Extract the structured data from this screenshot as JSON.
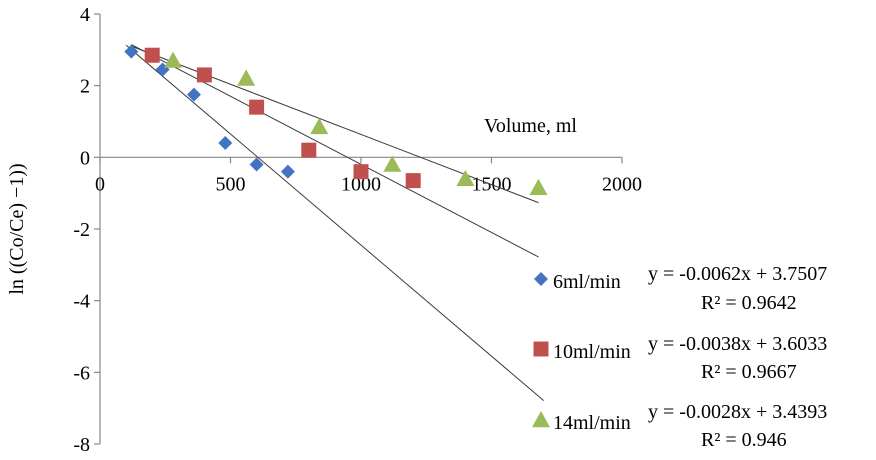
{
  "chart_data": {
    "type": "scatter",
    "title": "",
    "xlabel": "Volume, ml",
    "ylabel": "ln ((Co/Ce)  −1))",
    "xlim": [
      0,
      2000
    ],
    "ylim": [
      -8,
      4
    ],
    "xticks": [
      0,
      500,
      1000,
      1500,
      2000
    ],
    "yticks": [
      4,
      2,
      0,
      -2,
      -4,
      -6,
      -8
    ],
    "grid": false,
    "legend_position": "right",
    "series": [
      {
        "name": "6ml/min",
        "marker": "diamond",
        "color": "#4472C4",
        "x": [
          120,
          240,
          360,
          480,
          600,
          720
        ],
        "y": [
          2.95,
          2.45,
          1.75,
          0.4,
          -0.2,
          -0.4
        ],
        "trend": {
          "slope": -0.0062,
          "intercept": 3.7507,
          "x_range": [
            100,
            1700
          ]
        },
        "equation": "y = -0.0062x  + 3.7507",
        "r2": "R² = 0.9642"
      },
      {
        "name": "10ml/min",
        "marker": "square",
        "color": "#C0504D",
        "x": [
          200,
          400,
          600,
          800,
          1000,
          1200
        ],
        "y": [
          2.85,
          2.3,
          1.4,
          0.2,
          -0.4,
          -0.65
        ],
        "trend": {
          "slope": -0.0038,
          "intercept": 3.6033,
          "x_range": [
            120,
            1680
          ]
        },
        "equation": "y = -0.0038x  + 3.6033",
        "r2": "R² = 0.9667"
      },
      {
        "name": "14ml/min",
        "marker": "triangle",
        "color": "#9BBB59",
        "x": [
          280,
          560,
          840,
          1120,
          1400,
          1680
        ],
        "y": [
          2.7,
          2.2,
          0.85,
          -0.2,
          -0.6,
          -0.85
        ],
        "trend": {
          "slope": -0.0028,
          "intercept": 3.4393,
          "x_range": [
            120,
            1680
          ]
        },
        "equation": "y = -0.0028x  + 3.4393",
        "r2": "R² = 0.946"
      }
    ]
  }
}
